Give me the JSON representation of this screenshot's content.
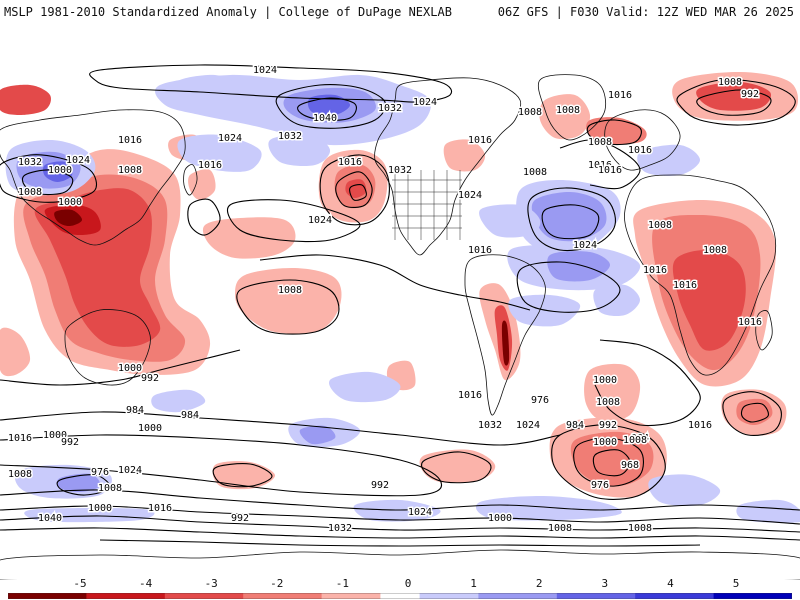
{
  "header": {
    "left_title": "MSLP 1981-2010 Standardized Anomaly | College of DuPage NEXLAB",
    "right_title": "06Z GFS | F030 Valid: 12Z WED MAR 26 2025"
  },
  "colors": {
    "neg5": "#7a0000",
    "neg4": "#c8171c",
    "neg3": "#e34a4a",
    "neg2": "#f07d75",
    "neg1": "#fbb3aa",
    "zero": "#ffffff",
    "pos1": "#c9cbfb",
    "pos2": "#9a9af2",
    "pos3": "#6464e6",
    "pos4": "#3a3ad8",
    "pos5": "#0000b8"
  },
  "colorbar": {
    "ticks": [
      "-5",
      "-4",
      "-3",
      "-2",
      "-1",
      "0",
      "1",
      "2",
      "3",
      "4",
      "5"
    ]
  },
  "isobar_labels": {
    "values": [
      "1024",
      "1008",
      "992",
      "1016",
      "1040",
      "1032",
      "1024",
      "1032",
      "1008",
      "1016",
      "1024",
      "1008",
      "1000",
      "1016",
      "1024",
      "1032",
      "1008",
      "1016",
      "1000",
      "1024",
      "1016",
      "1032",
      "1024",
      "1016",
      "1008",
      "1008",
      "1016",
      "1008",
      "1016",
      "1016",
      "1008",
      "1016",
      "1024",
      "1008",
      "1016",
      "1016",
      "1008",
      "1000",
      "992",
      "984",
      "968",
      "984",
      "976",
      "1016",
      "1000",
      "1008",
      "992",
      "984",
      "1000",
      "1008",
      "1032",
      "1024",
      "1016",
      "976",
      "992",
      "1000",
      "992",
      "1016",
      "1000",
      "984",
      "976",
      "1008",
      "1024",
      "1040",
      "992",
      "1008",
      "1000",
      "1016",
      "1024",
      "1032",
      "1000",
      "1008",
      "1008"
    ]
  }
}
